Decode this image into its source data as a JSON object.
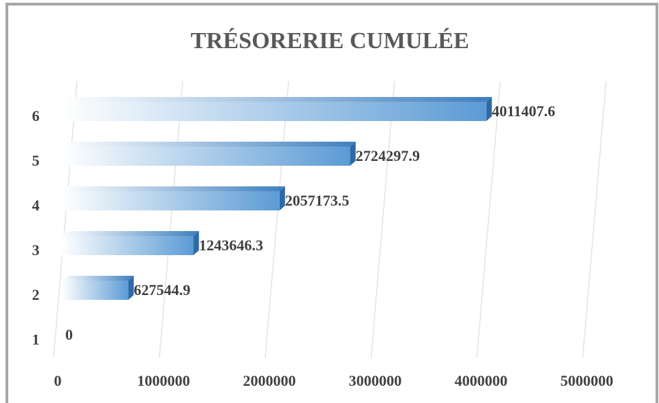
{
  "chart_data": {
    "type": "bar",
    "orientation": "horizontal",
    "title": "TRÉSORERIE CUMULÉE",
    "categories": [
      "1",
      "2",
      "3",
      "4",
      "5",
      "6"
    ],
    "values": [
      0,
      627544.9,
      1243646.3,
      2057173.5,
      2724297.9,
      4011407.6
    ],
    "color": "#5b9bd5",
    "xlim": [
      0,
      5000000
    ],
    "xticks": [
      0,
      1000000,
      2000000,
      3000000,
      4000000,
      5000000
    ],
    "grid": true
  }
}
